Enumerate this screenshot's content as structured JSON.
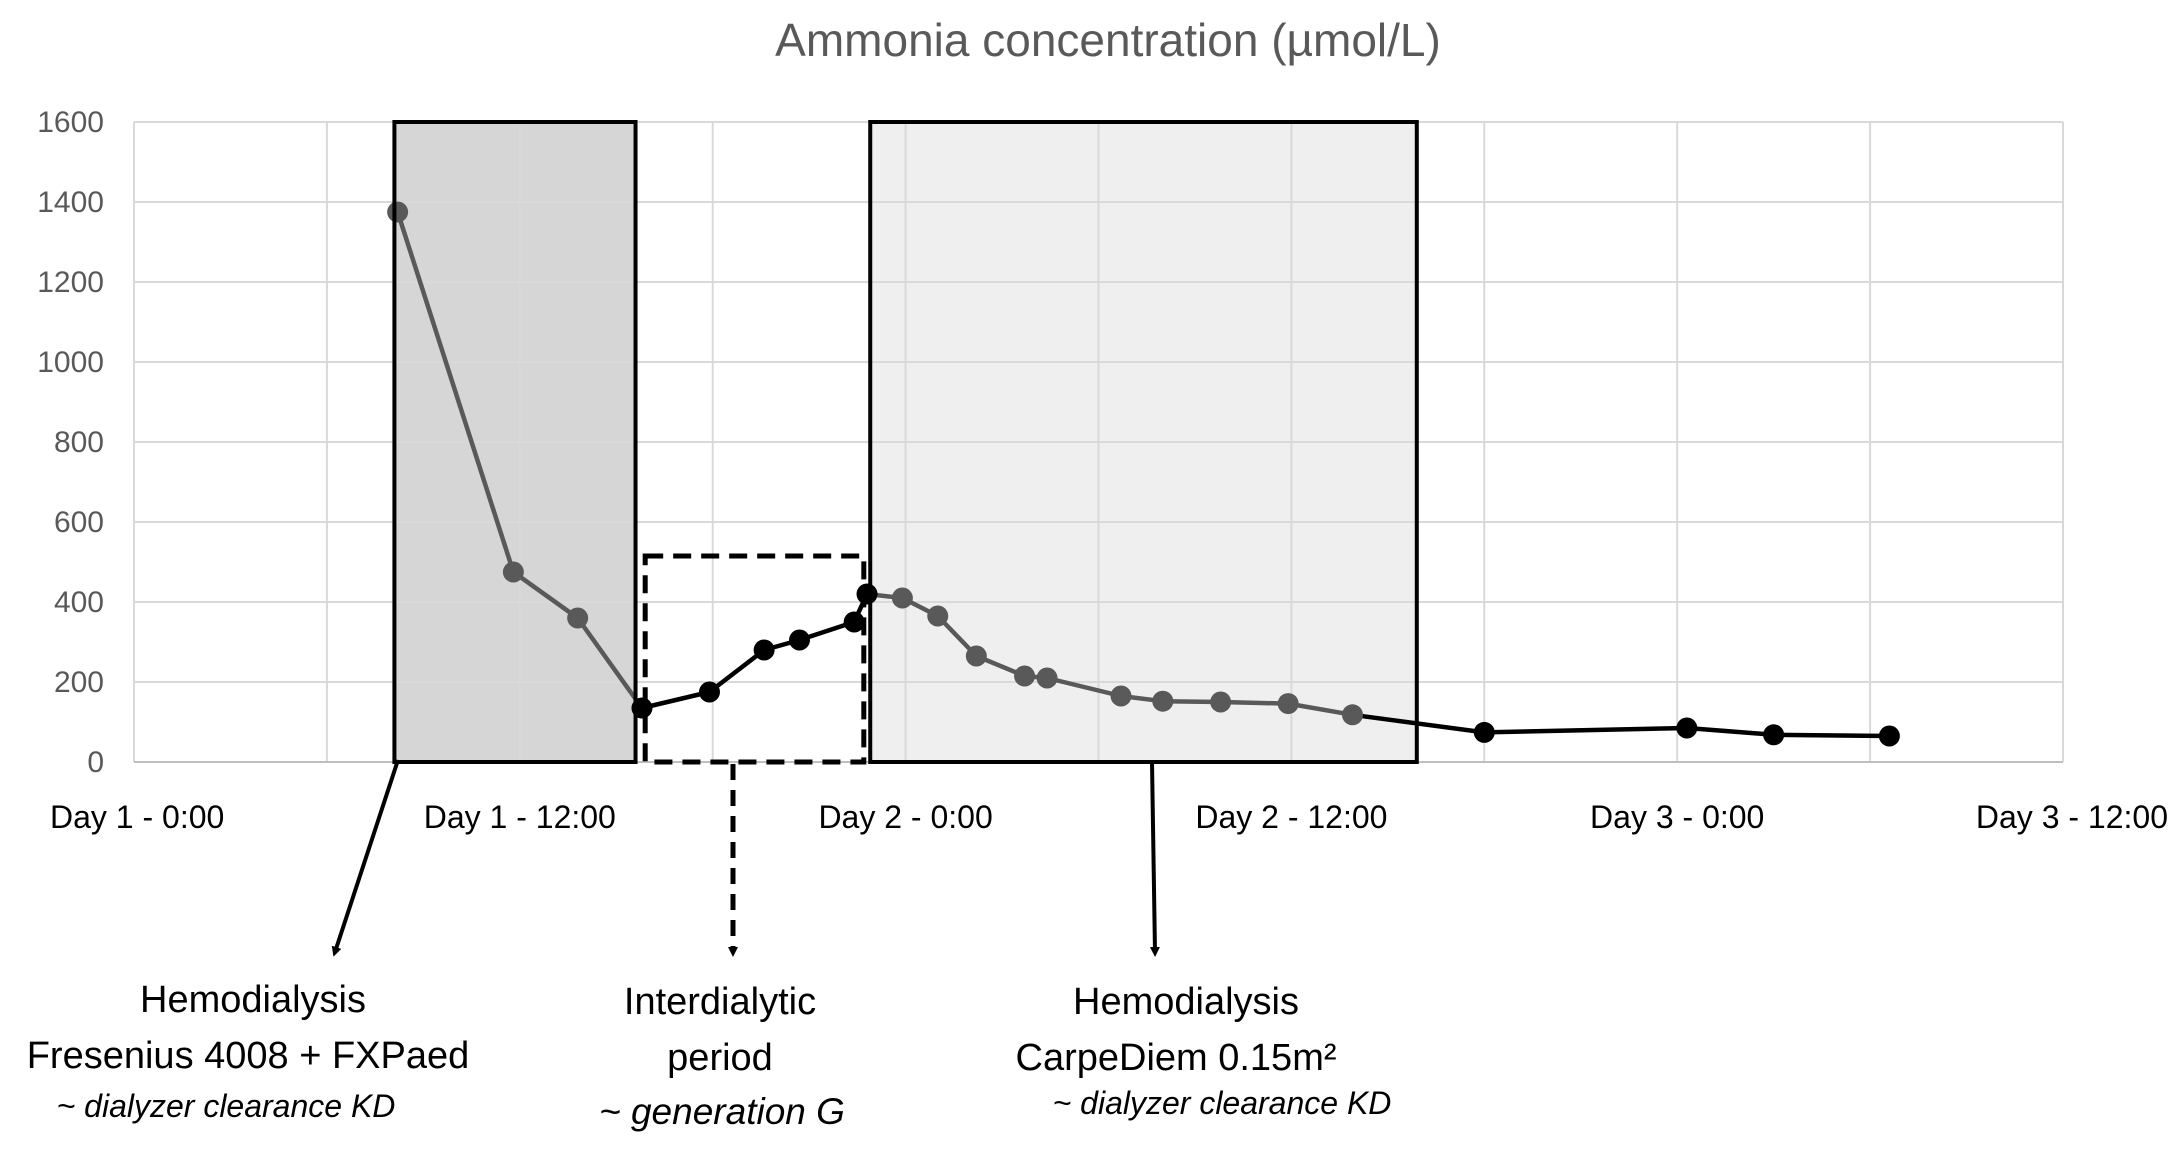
{
  "chart_data": {
    "type": "line",
    "title": "Ammonia concentration (µmol/L)",
    "xlabel": "",
    "ylabel": "",
    "ylim": [
      0,
      1600
    ],
    "yticks": [
      0,
      200,
      400,
      600,
      800,
      1000,
      1200,
      1400,
      1600
    ],
    "xlim_hours": [
      0,
      60
    ],
    "xtick_labels": [
      "Day 1 - 0:00",
      "Day 1 - 12:00",
      "Day 2 - 0:00",
      "Day 2 - 12:00",
      "Day 3 - 0:00",
      "Day 3 - 12:00"
    ],
    "xtick_hours": [
      0,
      12,
      24,
      36,
      48,
      60
    ],
    "grid": true,
    "series": [
      {
        "name": "Ammonia",
        "x_hours": [
          8.2,
          11.8,
          13.8,
          15.8,
          17.9,
          19.6,
          20.7,
          22.4,
          22.8,
          23.9,
          25.0,
          26.2,
          27.7,
          28.4,
          30.7,
          32.0,
          33.8,
          35.9,
          37.9,
          42.0,
          48.3,
          51.0,
          54.6
        ],
        "values": [
          1375,
          475,
          360,
          135,
          175,
          280,
          305,
          350,
          420,
          410,
          365,
          265,
          215,
          210,
          165,
          152,
          150,
          146,
          118,
          74,
          85,
          68,
          65
        ]
      }
    ],
    "periods": [
      {
        "name": "hemodialysis-1",
        "start_hours": 8.1,
        "end_hours": 15.6,
        "style": "solid-dark"
      },
      {
        "name": "interdialytic",
        "start_hours": 15.9,
        "end_hours": 22.7,
        "style": "dashed"
      },
      {
        "name": "hemodialysis-2",
        "start_hours": 22.9,
        "end_hours": 39.9,
        "style": "solid-light"
      }
    ]
  },
  "annotations": {
    "hd1": {
      "line1": "Hemodialysis",
      "line2": "Fresenius 4008 + FXPaed",
      "sub": "~ dialyzer clearance KD"
    },
    "inter": {
      "line1": "Interdialytic",
      "line2": "period",
      "sub": "~ generation G"
    },
    "hd2": {
      "line1": "Hemodialysis",
      "line2": "CarpeDiem 0.15m²",
      "sub": "~ dialyzer clearance KD"
    }
  },
  "colors": {
    "hd1_fill": "#d6d6d6",
    "hd2_fill": "#efefef",
    "line_inside": "#595959",
    "line_outside": "#000000",
    "marker_inside": "#595959",
    "marker_outside": "#000000"
  }
}
